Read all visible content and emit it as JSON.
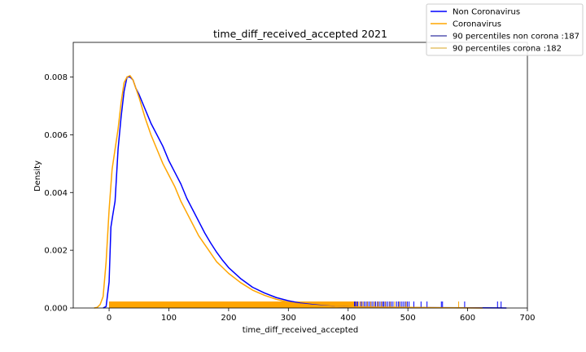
{
  "chart_data": {
    "type": "line",
    "title": "time_diff_received_accepted 2021",
    "xlabel": "time_diff_received_accepted",
    "ylabel": "Density",
    "xlim": [
      -60,
      700
    ],
    "ylim": [
      0,
      0.0092
    ],
    "xticks": [
      0,
      100,
      200,
      300,
      400,
      500,
      600,
      700
    ],
    "xtick_labels": [
      "0",
      "100",
      "200",
      "300",
      "400",
      "500",
      "600",
      "700"
    ],
    "yticks": [
      0,
      0.002,
      0.004,
      0.006,
      0.008
    ],
    "ytick_labels": [
      "0.000",
      "0.002",
      "0.004",
      "0.006",
      "0.008"
    ],
    "grid": false,
    "legend_position": "top-right",
    "series": [
      {
        "name": "Non Coronavirus",
        "color": "#0000ff",
        "x": [
          -10,
          -5,
          0,
          3,
          6,
          10,
          15,
          20,
          25,
          30,
          35,
          40,
          45,
          50,
          60,
          70,
          80,
          90,
          100,
          110,
          120,
          130,
          140,
          150,
          160,
          170,
          180,
          190,
          200,
          220,
          240,
          260,
          280,
          300,
          320,
          340,
          360,
          380,
          400,
          420,
          450,
          500,
          550,
          600,
          650,
          665
        ],
        "y": [
          0,
          5e-05,
          0.0009,
          0.0028,
          0.0032,
          0.0037,
          0.0055,
          0.0066,
          0.0075,
          0.008,
          0.008,
          0.0079,
          0.0076,
          0.0074,
          0.0069,
          0.0064,
          0.006,
          0.0056,
          0.0051,
          0.0047,
          0.0043,
          0.0038,
          0.0034,
          0.003,
          0.0026,
          0.00225,
          0.00193,
          0.00165,
          0.0014,
          0.00102,
          0.00072,
          0.00052,
          0.00036,
          0.00025,
          0.00017,
          0.00012,
          8e-05,
          5e-05,
          4e-05,
          3e-05,
          2e-05,
          1.5e-05,
          1e-05,
          8e-06,
          5e-06,
          0
        ]
      },
      {
        "name": "Coronavirus",
        "color": "#ffa500",
        "x": [
          -25,
          -20,
          -15,
          -10,
          -5,
          0,
          5,
          10,
          15,
          20,
          25,
          30,
          35,
          40,
          45,
          50,
          60,
          70,
          80,
          90,
          100,
          110,
          120,
          130,
          140,
          150,
          160,
          170,
          180,
          190,
          200,
          220,
          240,
          260,
          280,
          300,
          320,
          340,
          360,
          380,
          400,
          450,
          500,
          550,
          600,
          625
        ],
        "y": [
          0,
          2e-05,
          0.00012,
          0.0004,
          0.0016,
          0.0034,
          0.0048,
          0.0055,
          0.0062,
          0.0071,
          0.0078,
          0.008,
          0.00805,
          0.0079,
          0.0076,
          0.0073,
          0.0066,
          0.006,
          0.0055,
          0.005,
          0.0046,
          0.0042,
          0.0037,
          0.0033,
          0.0029,
          0.0025,
          0.0022,
          0.0019,
          0.0016,
          0.0014,
          0.0012,
          0.00088,
          0.00062,
          0.00044,
          0.0003,
          0.0002,
          0.00014,
          0.0001,
          7e-05,
          5e-05,
          4e-05,
          3e-05,
          2e-05,
          1e-05,
          5e-06,
          0
        ]
      }
    ],
    "rugs": [
      {
        "name": "Non Coronavirus",
        "color": "#0000ff",
        "start": 0,
        "dense_end": 415,
        "ticks": [
          416,
          420,
          423,
          427,
          430,
          433,
          436,
          440,
          443,
          446,
          449,
          452,
          455,
          458,
          460,
          463,
          466,
          469,
          472,
          475,
          478,
          481,
          484,
          487,
          490,
          493,
          496,
          499,
          502,
          510,
          522,
          532,
          556,
          558,
          595,
          650,
          656
        ]
      },
      {
        "name": "Coronavirus",
        "color": "#ffa500",
        "start": 0,
        "dense_end": 410,
        "ticks": [
          413,
          417,
          421,
          425,
          432,
          438,
          444,
          450,
          456,
          462,
          470,
          478,
          486,
          497,
          585
        ]
      }
    ],
    "percentile_lines": [
      {
        "name": "90 percentiles non corona :187",
        "color": "#00008b",
        "x": 187
      },
      {
        "name": "90 percentiles corona :182",
        "color": "#daa520",
        "x": 182
      }
    ],
    "legend": [
      {
        "label": "Non Coronavirus",
        "color": "#0000ff",
        "weight": 1.5
      },
      {
        "label": "Coronavirus",
        "color": "#ffa500",
        "weight": 1.5
      },
      {
        "label": "90 percentiles non corona :187",
        "color": "#00008b",
        "weight": 1
      },
      {
        "label": "90 percentiles corona :182",
        "color": "#daa520",
        "weight": 1
      }
    ]
  }
}
